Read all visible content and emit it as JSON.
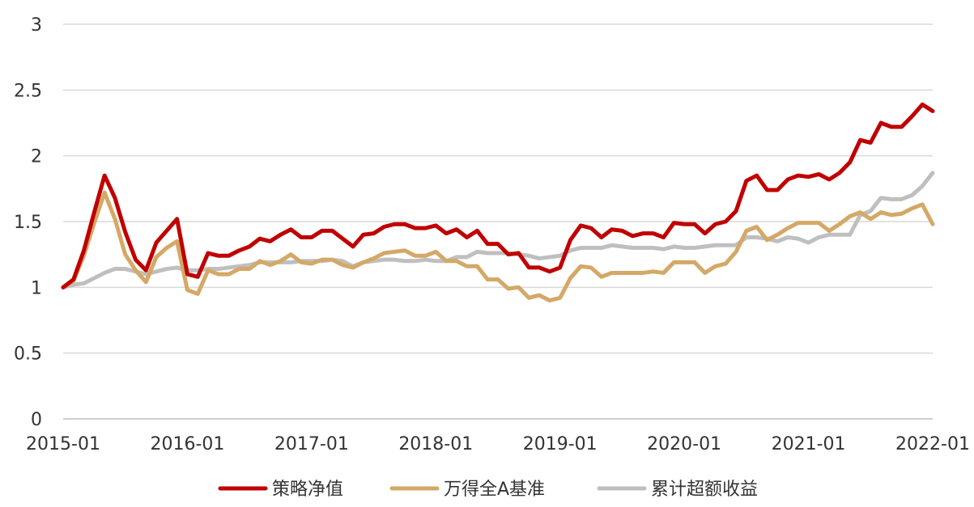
{
  "chart_data": {
    "type": "line",
    "title": "",
    "xlabel": "",
    "ylabel": "",
    "ylim": [
      0,
      3
    ],
    "yticks": [
      "0",
      "0.5",
      "1",
      "1.5",
      "2",
      "2.5",
      "3"
    ],
    "xticks": [
      "2015-01",
      "2016-01",
      "2017-01",
      "2018-01",
      "2019-01",
      "2020-01",
      "2021-01",
      "2022-01"
    ],
    "grid": true,
    "legend_position": "bottom",
    "x_start": "2015-01",
    "series": [
      {
        "name": "策略净值",
        "color": "#C00000",
        "values": [
          1.0,
          1.06,
          1.28,
          1.57,
          1.85,
          1.68,
          1.42,
          1.21,
          1.13,
          1.34,
          1.43,
          1.52,
          1.1,
          1.08,
          1.26,
          1.24,
          1.24,
          1.28,
          1.31,
          1.37,
          1.35,
          1.4,
          1.44,
          1.38,
          1.38,
          1.43,
          1.43,
          1.37,
          1.31,
          1.4,
          1.41,
          1.46,
          1.48,
          1.48,
          1.45,
          1.45,
          1.47,
          1.41,
          1.44,
          1.38,
          1.43,
          1.33,
          1.33,
          1.25,
          1.26,
          1.15,
          1.15,
          1.12,
          1.15,
          1.36,
          1.47,
          1.45,
          1.38,
          1.44,
          1.43,
          1.39,
          1.41,
          1.41,
          1.38,
          1.49,
          1.48,
          1.48,
          1.41,
          1.48,
          1.5,
          1.58,
          1.81,
          1.85,
          1.74,
          1.74,
          1.82,
          1.85,
          1.84,
          1.86,
          1.82,
          1.87,
          1.95,
          2.12,
          2.1,
          2.25,
          2.22,
          2.22,
          2.3,
          2.39,
          2.34
        ]
      },
      {
        "name": "万得全A基准",
        "color": "#D4A866",
        "values": [
          1.0,
          1.05,
          1.24,
          1.49,
          1.72,
          1.52,
          1.25,
          1.13,
          1.04,
          1.23,
          1.3,
          1.35,
          0.98,
          0.95,
          1.13,
          1.1,
          1.1,
          1.14,
          1.14,
          1.2,
          1.17,
          1.2,
          1.25,
          1.19,
          1.18,
          1.21,
          1.21,
          1.17,
          1.15,
          1.19,
          1.22,
          1.26,
          1.27,
          1.28,
          1.24,
          1.24,
          1.27,
          1.2,
          1.2,
          1.16,
          1.16,
          1.06,
          1.06,
          0.99,
          1.0,
          0.92,
          0.94,
          0.9,
          0.92,
          1.07,
          1.16,
          1.15,
          1.08,
          1.11,
          1.11,
          1.11,
          1.11,
          1.12,
          1.11,
          1.19,
          1.19,
          1.19,
          1.11,
          1.16,
          1.18,
          1.27,
          1.43,
          1.46,
          1.36,
          1.4,
          1.45,
          1.49,
          1.49,
          1.49,
          1.43,
          1.48,
          1.54,
          1.57,
          1.52,
          1.57,
          1.55,
          1.56,
          1.6,
          1.63,
          1.48
        ]
      },
      {
        "name": "累计超额收益",
        "color": "#BFBFBF",
        "values": [
          1.0,
          1.02,
          1.03,
          1.07,
          1.11,
          1.14,
          1.14,
          1.12,
          1.1,
          1.12,
          1.14,
          1.15,
          1.13,
          1.13,
          1.14,
          1.14,
          1.15,
          1.16,
          1.17,
          1.19,
          1.19,
          1.19,
          1.19,
          1.2,
          1.2,
          1.2,
          1.21,
          1.2,
          1.16,
          1.19,
          1.2,
          1.21,
          1.21,
          1.2,
          1.2,
          1.21,
          1.2,
          1.2,
          1.23,
          1.23,
          1.27,
          1.26,
          1.26,
          1.26,
          1.25,
          1.24,
          1.22,
          1.23,
          1.24,
          1.28,
          1.3,
          1.3,
          1.3,
          1.32,
          1.31,
          1.3,
          1.3,
          1.3,
          1.29,
          1.31,
          1.3,
          1.3,
          1.31,
          1.32,
          1.32,
          1.32,
          1.38,
          1.38,
          1.37,
          1.35,
          1.38,
          1.37,
          1.34,
          1.38,
          1.4,
          1.4,
          1.4,
          1.55,
          1.58,
          1.68,
          1.67,
          1.67,
          1.7,
          1.77,
          1.87
        ]
      }
    ]
  }
}
